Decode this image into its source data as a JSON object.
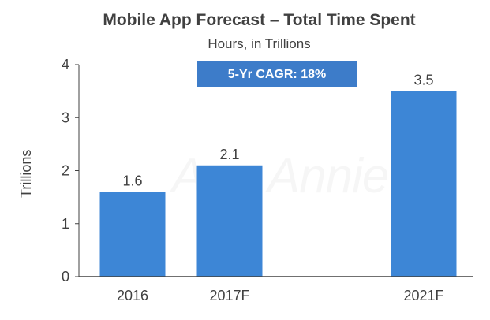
{
  "chart_data": {
    "type": "bar",
    "title": "Mobile App Forecast – Total Time Spent",
    "subtitle": "Hours, in Trillions",
    "ylabel": "Trillions",
    "xlabel": "",
    "categories": [
      "2016",
      "2017F",
      "2021F"
    ],
    "values": [
      1.6,
      2.1,
      3.5
    ],
    "data_labels": [
      "1.6",
      "2.1",
      "3.5"
    ],
    "y_ticks": [
      "0",
      "1",
      "2",
      "3",
      "4"
    ],
    "ylim": [
      0,
      4
    ],
    "grid": false,
    "annotation": "5-Yr CAGR: 18%",
    "watermark": "App Annie",
    "bar_color": "#3d86d6"
  }
}
